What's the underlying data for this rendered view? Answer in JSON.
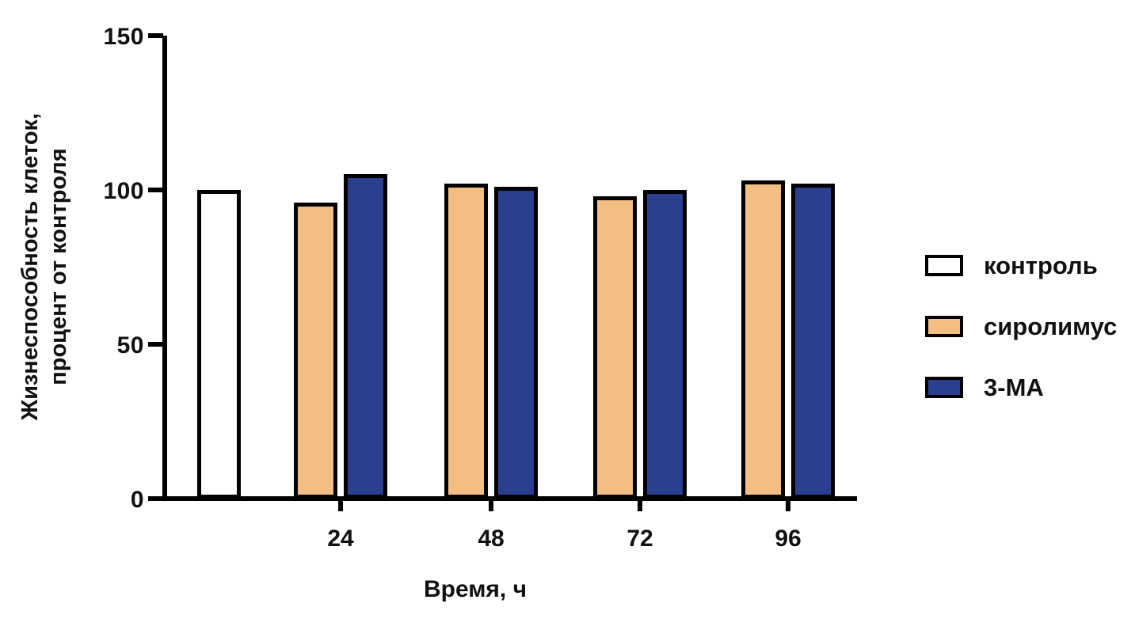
{
  "chart_data": {
    "type": "bar",
    "title": "",
    "xlabel": "Время, ч",
    "ylabel": "Жизнеспособность клеток,\nпроцент от контроля",
    "ylabel_lines": [
      "Жизнеспособность клеток,",
      "процент от контроля"
    ],
    "categories": [
      "24",
      "48",
      "72",
      "96"
    ],
    "control": {
      "name": "контроль",
      "value": 100,
      "fill": "#FFFFFF"
    },
    "series": [
      {
        "name": "сиролимус",
        "color": "#F2BE82",
        "values": [
          96,
          102,
          98,
          103
        ]
      },
      {
        "name": "3-МА",
        "color": "#2B3F8F",
        "values": [
          105,
          101,
          100,
          102
        ]
      }
    ],
    "ylim": [
      0,
      150
    ],
    "yticks": [
      150,
      100,
      50,
      0
    ],
    "grid": false,
    "legend_position": "right",
    "bar_border_color": "#000000"
  },
  "legend": {
    "items": [
      {
        "label": "контроль",
        "fill": "#FFFFFF"
      },
      {
        "label": "сиролимус",
        "fill": "#F2BE82"
      },
      {
        "label": "3-МА",
        "fill": "#2B3F8F"
      }
    ]
  }
}
